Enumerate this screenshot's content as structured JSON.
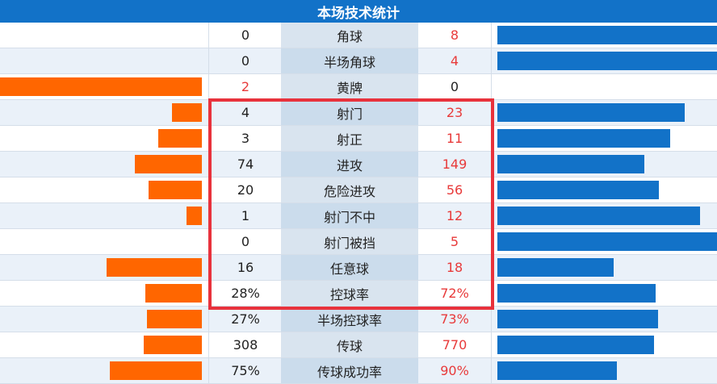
{
  "header": {
    "title": "本场技术统计"
  },
  "colors": {
    "home_bar": "#ff6600",
    "away_bar": "#1272c8",
    "highlight": "#e8323c",
    "leader_text": "#e83a3a"
  },
  "rows": [
    {
      "name": "角球",
      "home": "0",
      "away": "8",
      "home_share": 0.0,
      "away_share": 1.0,
      "lead": "away"
    },
    {
      "name": "半场角球",
      "home": "0",
      "away": "4",
      "home_share": 0.0,
      "away_share": 1.0,
      "lead": "away"
    },
    {
      "name": "黄牌",
      "home": "2",
      "away": "0",
      "home_share": 1.0,
      "away_share": 0.0,
      "lead": "home"
    },
    {
      "name": "射门",
      "home": "4",
      "away": "23",
      "home_share": 0.148,
      "away_share": 0.852,
      "lead": "away"
    },
    {
      "name": "射正",
      "home": "3",
      "away": "11",
      "home_share": 0.214,
      "away_share": 0.786,
      "lead": "away"
    },
    {
      "name": "进攻",
      "home": "74",
      "away": "149",
      "home_share": 0.332,
      "away_share": 0.668,
      "lead": "away"
    },
    {
      "name": "危险进攻",
      "home": "20",
      "away": "56",
      "home_share": 0.263,
      "away_share": 0.737,
      "lead": "away"
    },
    {
      "name": "射门不中",
      "home": "1",
      "away": "12",
      "home_share": 0.077,
      "away_share": 0.923,
      "lead": "away"
    },
    {
      "name": "射门被挡",
      "home": "0",
      "away": "5",
      "home_share": 0.0,
      "away_share": 1.0,
      "lead": "away"
    },
    {
      "name": "任意球",
      "home": "16",
      "away": "18",
      "home_share": 0.471,
      "away_share": 0.529,
      "lead": "away"
    },
    {
      "name": "控球率",
      "home": "28%",
      "away": "72%",
      "home_share": 0.28,
      "away_share": 0.72,
      "lead": "away"
    },
    {
      "name": "半场控球率",
      "home": "27%",
      "away": "73%",
      "home_share": 0.27,
      "away_share": 0.73,
      "lead": "away"
    },
    {
      "name": "传球",
      "home": "308",
      "away": "770",
      "home_share": 0.286,
      "away_share": 0.714,
      "lead": "away"
    },
    {
      "name": "传球成功率",
      "home": "75%",
      "away": "90%",
      "home_share": 0.455,
      "away_share": 0.545,
      "lead": "away"
    }
  ]
}
